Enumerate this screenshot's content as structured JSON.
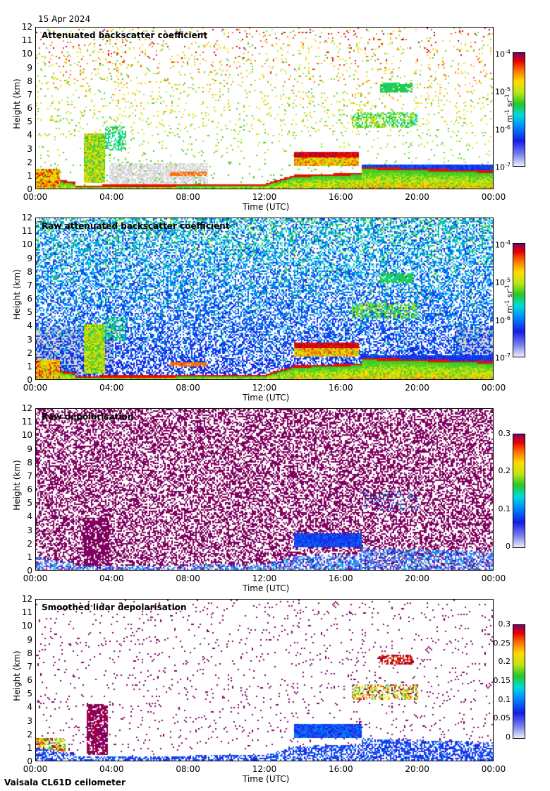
{
  "date_label": "15 Apr 2024",
  "footer": "Vaisala CL61D ceilometer",
  "chart_data": [
    {
      "type": "heatmap",
      "title": "Attenuated backscatter coefficient",
      "xlabel": "Time (UTC)",
      "ylabel": "Height (km)",
      "x_ticks": [
        "00:00",
        "04:00",
        "08:00",
        "12:00",
        "16:00",
        "20:00",
        "00:00"
      ],
      "y_ticks": [
        "0",
        "1",
        "2",
        "3",
        "4",
        "5",
        "6",
        "7",
        "8",
        "9",
        "10",
        "11",
        "12"
      ],
      "ylim": [
        0,
        12
      ],
      "xlim_hours": [
        0,
        24
      ],
      "colorbar": {
        "scale": "log",
        "ticks": [
          "10-7",
          "10-6",
          "10-5",
          "10-4"
        ],
        "unit": "m-1 sr-1"
      },
      "features": [
        "boundary layer aerosol 0-1 km",
        "cloud layer 2-3 km 13:30-17:00",
        "elevated cloud 3-5 km 02:30-04:30",
        "mid-level cloud 4.5-8 km 16:30-21:00"
      ]
    },
    {
      "type": "heatmap",
      "title": "Raw attenuated backscatter coefficient",
      "xlabel": "Time (UTC)",
      "ylabel": "Height (km)",
      "x_ticks": [
        "00:00",
        "04:00",
        "08:00",
        "12:00",
        "16:00",
        "20:00",
        "00:00"
      ],
      "y_ticks": [
        "0",
        "1",
        "2",
        "3",
        "4",
        "5",
        "6",
        "7",
        "8",
        "9",
        "10",
        "11",
        "12"
      ],
      "ylim": [
        0,
        12
      ],
      "xlim_hours": [
        0,
        24
      ],
      "colorbar": {
        "scale": "log",
        "ticks": [
          "10-7",
          "10-6",
          "10-5",
          "10-4"
        ],
        "unit": "m-1 sr-1"
      }
    },
    {
      "type": "heatmap",
      "title": "Raw depolarisation",
      "xlabel": "Time (UTC)",
      "ylabel": "Height (km)",
      "x_ticks": [
        "00:00",
        "04:00",
        "08:00",
        "12:00",
        "16:00",
        "20:00",
        "00:00"
      ],
      "y_ticks": [
        "0",
        "1",
        "2",
        "3",
        "4",
        "5",
        "6",
        "7",
        "8",
        "9",
        "10",
        "11",
        "12"
      ],
      "ylim": [
        0,
        12
      ],
      "xlim_hours": [
        0,
        24
      ],
      "colorbar": {
        "scale": "linear",
        "ticks": [
          "0",
          "0.1",
          "0.2",
          "0.3"
        ],
        "range": [
          0,
          0.3
        ]
      }
    },
    {
      "type": "heatmap",
      "title": "Smoothed lidar depolarisation",
      "xlabel": "Time (UTC)",
      "ylabel": "Height (km)",
      "x_ticks": [
        "00:00",
        "04:00",
        "08:00",
        "12:00",
        "16:00",
        "20:00",
        "00:00"
      ],
      "y_ticks": [
        "0",
        "1",
        "2",
        "3",
        "4",
        "5",
        "6",
        "7",
        "8",
        "9",
        "10",
        "11",
        "12"
      ],
      "ylim": [
        0,
        12
      ],
      "xlim_hours": [
        0,
        24
      ],
      "colorbar": {
        "scale": "linear",
        "ticks": [
          "0",
          "0.05",
          "0.1",
          "0.15",
          "0.2",
          "0.25",
          "0.3"
        ],
        "range": [
          0,
          0.3
        ]
      }
    }
  ]
}
